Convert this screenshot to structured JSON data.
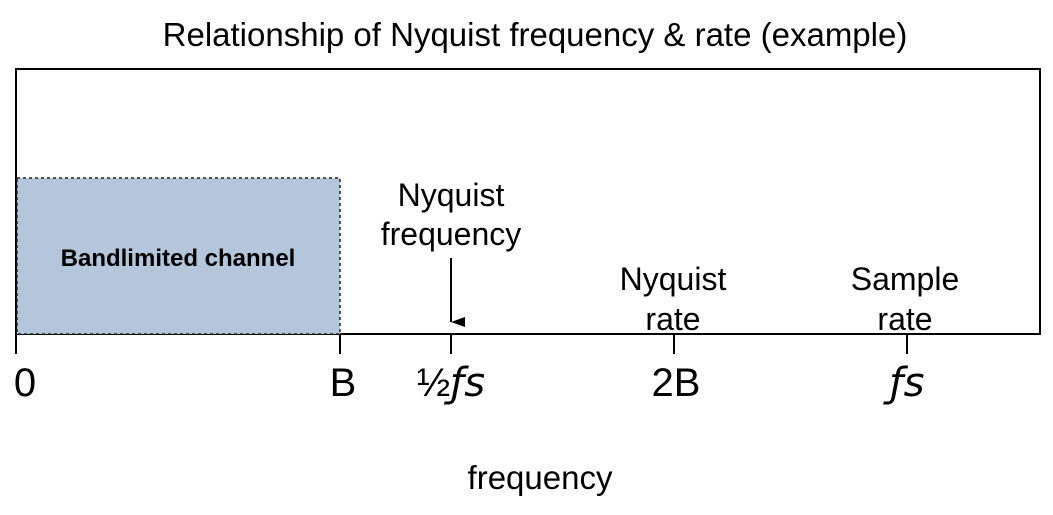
{
  "title": "Relationship of Nyquist frequency & rate (example)",
  "band": {
    "label": "Bandlimited channel",
    "fill": "#b4c6dc"
  },
  "annotations": {
    "nyquist_frequency": [
      "Nyquist",
      "frequency"
    ],
    "nyquist_rate": [
      "Nyquist",
      "rate"
    ],
    "sample_rate": [
      "Sample",
      "rate"
    ]
  },
  "ticks": {
    "zero": "0",
    "b": "B",
    "half_fs_prefix": "½",
    "half_fs_symbol": "ƒs",
    "two_b": "2B",
    "fs": "ƒs"
  },
  "axis_label": "frequency"
}
